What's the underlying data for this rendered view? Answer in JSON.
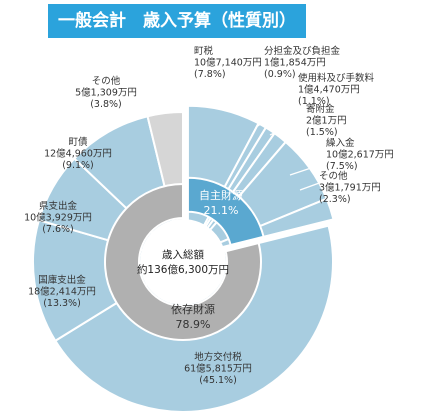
{
  "title": "一般会計　歳入予算（性質別）",
  "chart_data": {
    "type": "pie",
    "center_label": [
      "歳入総額",
      "約136億6,300万円"
    ],
    "groups": [
      {
        "name": "自主財源",
        "percent": "21.1%",
        "color": "#5aa8d0"
      },
      {
        "name": "依存財源",
        "percent": "78.9%",
        "color": "#b0b0b0"
      }
    ],
    "slices": [
      {
        "name": "町税",
        "amount": "10億7,140万円",
        "percent": "(7.8%)",
        "value": 7.8,
        "group": "自主財源"
      },
      {
        "name": "分担金及び負担金",
        "amount": "1億1,854万円",
        "percent": "(0.9%)",
        "value": 0.9,
        "group": "自主財源"
      },
      {
        "name": "使用料及び手数料",
        "amount": "1億4,470万円",
        "percent": "(1.1%)",
        "value": 1.1,
        "group": "自主財源"
      },
      {
        "name": "寄附金",
        "amount": "2億1万円",
        "percent": "(1.5%)",
        "value": 1.5,
        "group": "自主財源"
      },
      {
        "name": "繰入金",
        "amount": "10億2,617万円",
        "percent": "(7.5%)",
        "value": 7.5,
        "group": "自主財源"
      },
      {
        "name": "その他",
        "amount": "3億1,791万円",
        "percent": "(2.3%)",
        "value": 2.3,
        "group": "自主財源"
      },
      {
        "name": "地方交付税",
        "amount": "61億5,815万円",
        "percent": "(45.1%)",
        "value": 45.1,
        "group": "依存財源"
      },
      {
        "name": "国庫支出金",
        "amount": "18億2,414万円",
        "percent": "(13.3%)",
        "value": 13.3,
        "group": "依存財源"
      },
      {
        "name": "県支出金",
        "amount": "10億3,929万円",
        "percent": "(7.6%)",
        "value": 7.6,
        "group": "依存財源"
      },
      {
        "name": "町債",
        "amount": "12億4,960万円",
        "percent": "(9.1%)",
        "value": 9.1,
        "group": "依存財源"
      },
      {
        "name": "その他",
        "amount": "5億1,309万円",
        "percent": "(3.8%)",
        "value": 3.8,
        "group": "依存財源"
      }
    ],
    "colors": {
      "outer_light_blue": "#a8cde0",
      "outer_grey": "#d6d6d6",
      "inner_blue": "#5aa8d0",
      "inner_grey": "#b0b0b0",
      "leader": "#ffffff"
    }
  }
}
